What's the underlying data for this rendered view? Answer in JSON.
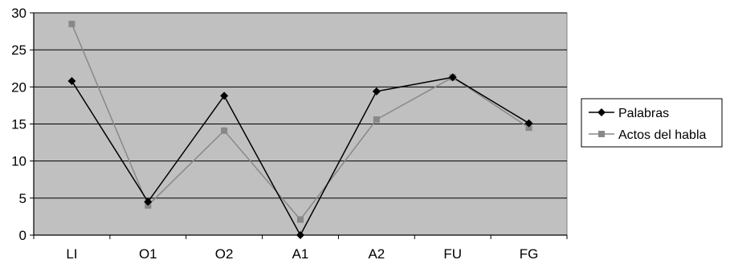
{
  "chart_data": {
    "type": "line",
    "categories": [
      "LI",
      "O1",
      "O2",
      "A1",
      "A2",
      "FU",
      "FG"
    ],
    "series": [
      {
        "name": "Palabras",
        "color": "#000000",
        "marker": "diamond",
        "values": [
          20.8,
          4.5,
          18.8,
          0.0,
          19.4,
          21.3,
          15.1
        ]
      },
      {
        "name": "Actos del habla",
        "color": "#888888",
        "marker": "square",
        "values": [
          28.5,
          4.0,
          14.1,
          2.1,
          15.6,
          21.3,
          14.5
        ]
      }
    ],
    "title": "",
    "xlabel": "",
    "ylabel": "",
    "ylim": [
      0,
      30
    ],
    "yticks": [
      0,
      5,
      10,
      15,
      20,
      25,
      30
    ],
    "grid": true,
    "plot_background": "#c0c0c0",
    "legend_position": "right"
  }
}
